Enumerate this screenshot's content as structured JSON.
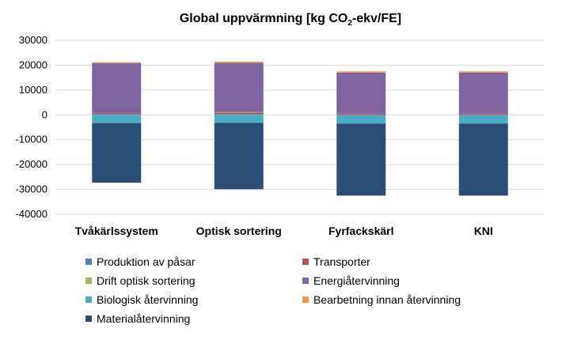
{
  "chart_data": {
    "type": "bar",
    "stacked": true,
    "title": {
      "main": "Global uppvärmning [kg CO",
      "sub": "2",
      "tail": "-ekv/FE]"
    },
    "categories": [
      "Tvåkärlssystem",
      "Optisk sortering",
      "Fyrfackskärl",
      "KNI"
    ],
    "ylim": [
      -40000,
      30000
    ],
    "yticks": [
      30000,
      20000,
      10000,
      0,
      -10000,
      -20000,
      -30000,
      -40000
    ],
    "grid": true,
    "legend_position": "bottom",
    "series": [
      {
        "name": "Produktion av påsar",
        "color": "#4F81BD",
        "values": [
          300,
          300,
          0,
          0
        ]
      },
      {
        "name": "Transporter",
        "color": "#C0504D",
        "values": [
          500,
          600,
          500,
          500
        ]
      },
      {
        "name": "Drift optisk sortering",
        "color": "#9BBB59",
        "values": [
          0,
          200,
          0,
          0
        ]
      },
      {
        "name": "Energiåtervinning",
        "color": "#8064A2",
        "values": [
          20000,
          19800,
          16500,
          16500
        ]
      },
      {
        "name": "Biologisk återvinning",
        "color": "#4BACC6",
        "values": [
          -3300,
          -3200,
          -3500,
          -3500
        ]
      },
      {
        "name": "Bearbetning innan återvinning",
        "color": "#F79646",
        "values": [
          400,
          500,
          500,
          500
        ]
      },
      {
        "name": "Materialåtervinning",
        "color": "#2C4D75",
        "values": [
          -24000,
          -26700,
          -29000,
          -29000
        ]
      }
    ]
  }
}
